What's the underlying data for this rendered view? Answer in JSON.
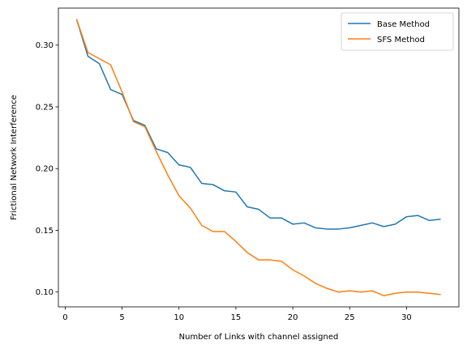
{
  "chart_data": {
    "type": "line",
    "title": "",
    "xlabel": "Number of Links with channel assigned",
    "ylabel": "Frictional Network Interference",
    "xlim": [
      -0.6,
      34.6
    ],
    "ylim": [
      0.088,
      0.33
    ],
    "xticks": [
      0,
      5,
      10,
      15,
      20,
      25,
      30
    ],
    "xtick_labels": [
      "0",
      "5",
      "10",
      "15",
      "20",
      "25",
      "30"
    ],
    "yticks": [
      0.1,
      0.15,
      0.2,
      0.25,
      0.3
    ],
    "ytick_labels": [
      "0.10",
      "0.15",
      "0.20",
      "0.25",
      "0.30"
    ],
    "grid": false,
    "legend_position": "top-right",
    "x": [
      1,
      2,
      3,
      4,
      5,
      6,
      7,
      8,
      9,
      10,
      11,
      12,
      13,
      14,
      15,
      16,
      17,
      18,
      19,
      20,
      21,
      22,
      23,
      24,
      25,
      26,
      27,
      28,
      29,
      30,
      31,
      32,
      33
    ],
    "series": [
      {
        "name": "Base Method",
        "color": "#1f77b4",
        "values": [
          0.321,
          0.291,
          0.285,
          0.264,
          0.26,
          0.239,
          0.235,
          0.216,
          0.213,
          0.203,
          0.201,
          0.188,
          0.187,
          0.182,
          0.181,
          0.169,
          0.167,
          0.16,
          0.16,
          0.155,
          0.156,
          0.152,
          0.151,
          0.151,
          0.152,
          0.154,
          0.156,
          0.153,
          0.155,
          0.161,
          0.162,
          0.158,
          0.159
        ]
      },
      {
        "name": "SFS Method",
        "color": "#ff7f0e",
        "values": [
          0.321,
          0.294,
          0.289,
          0.284,
          0.262,
          0.238,
          0.234,
          0.214,
          0.195,
          0.178,
          0.168,
          0.154,
          0.149,
          0.149,
          0.141,
          0.132,
          0.126,
          0.126,
          0.125,
          0.118,
          0.113,
          0.107,
          0.103,
          0.1,
          0.101,
          0.1,
          0.101,
          0.097,
          0.099,
          0.1,
          0.1,
          0.099,
          0.098
        ]
      }
    ]
  }
}
